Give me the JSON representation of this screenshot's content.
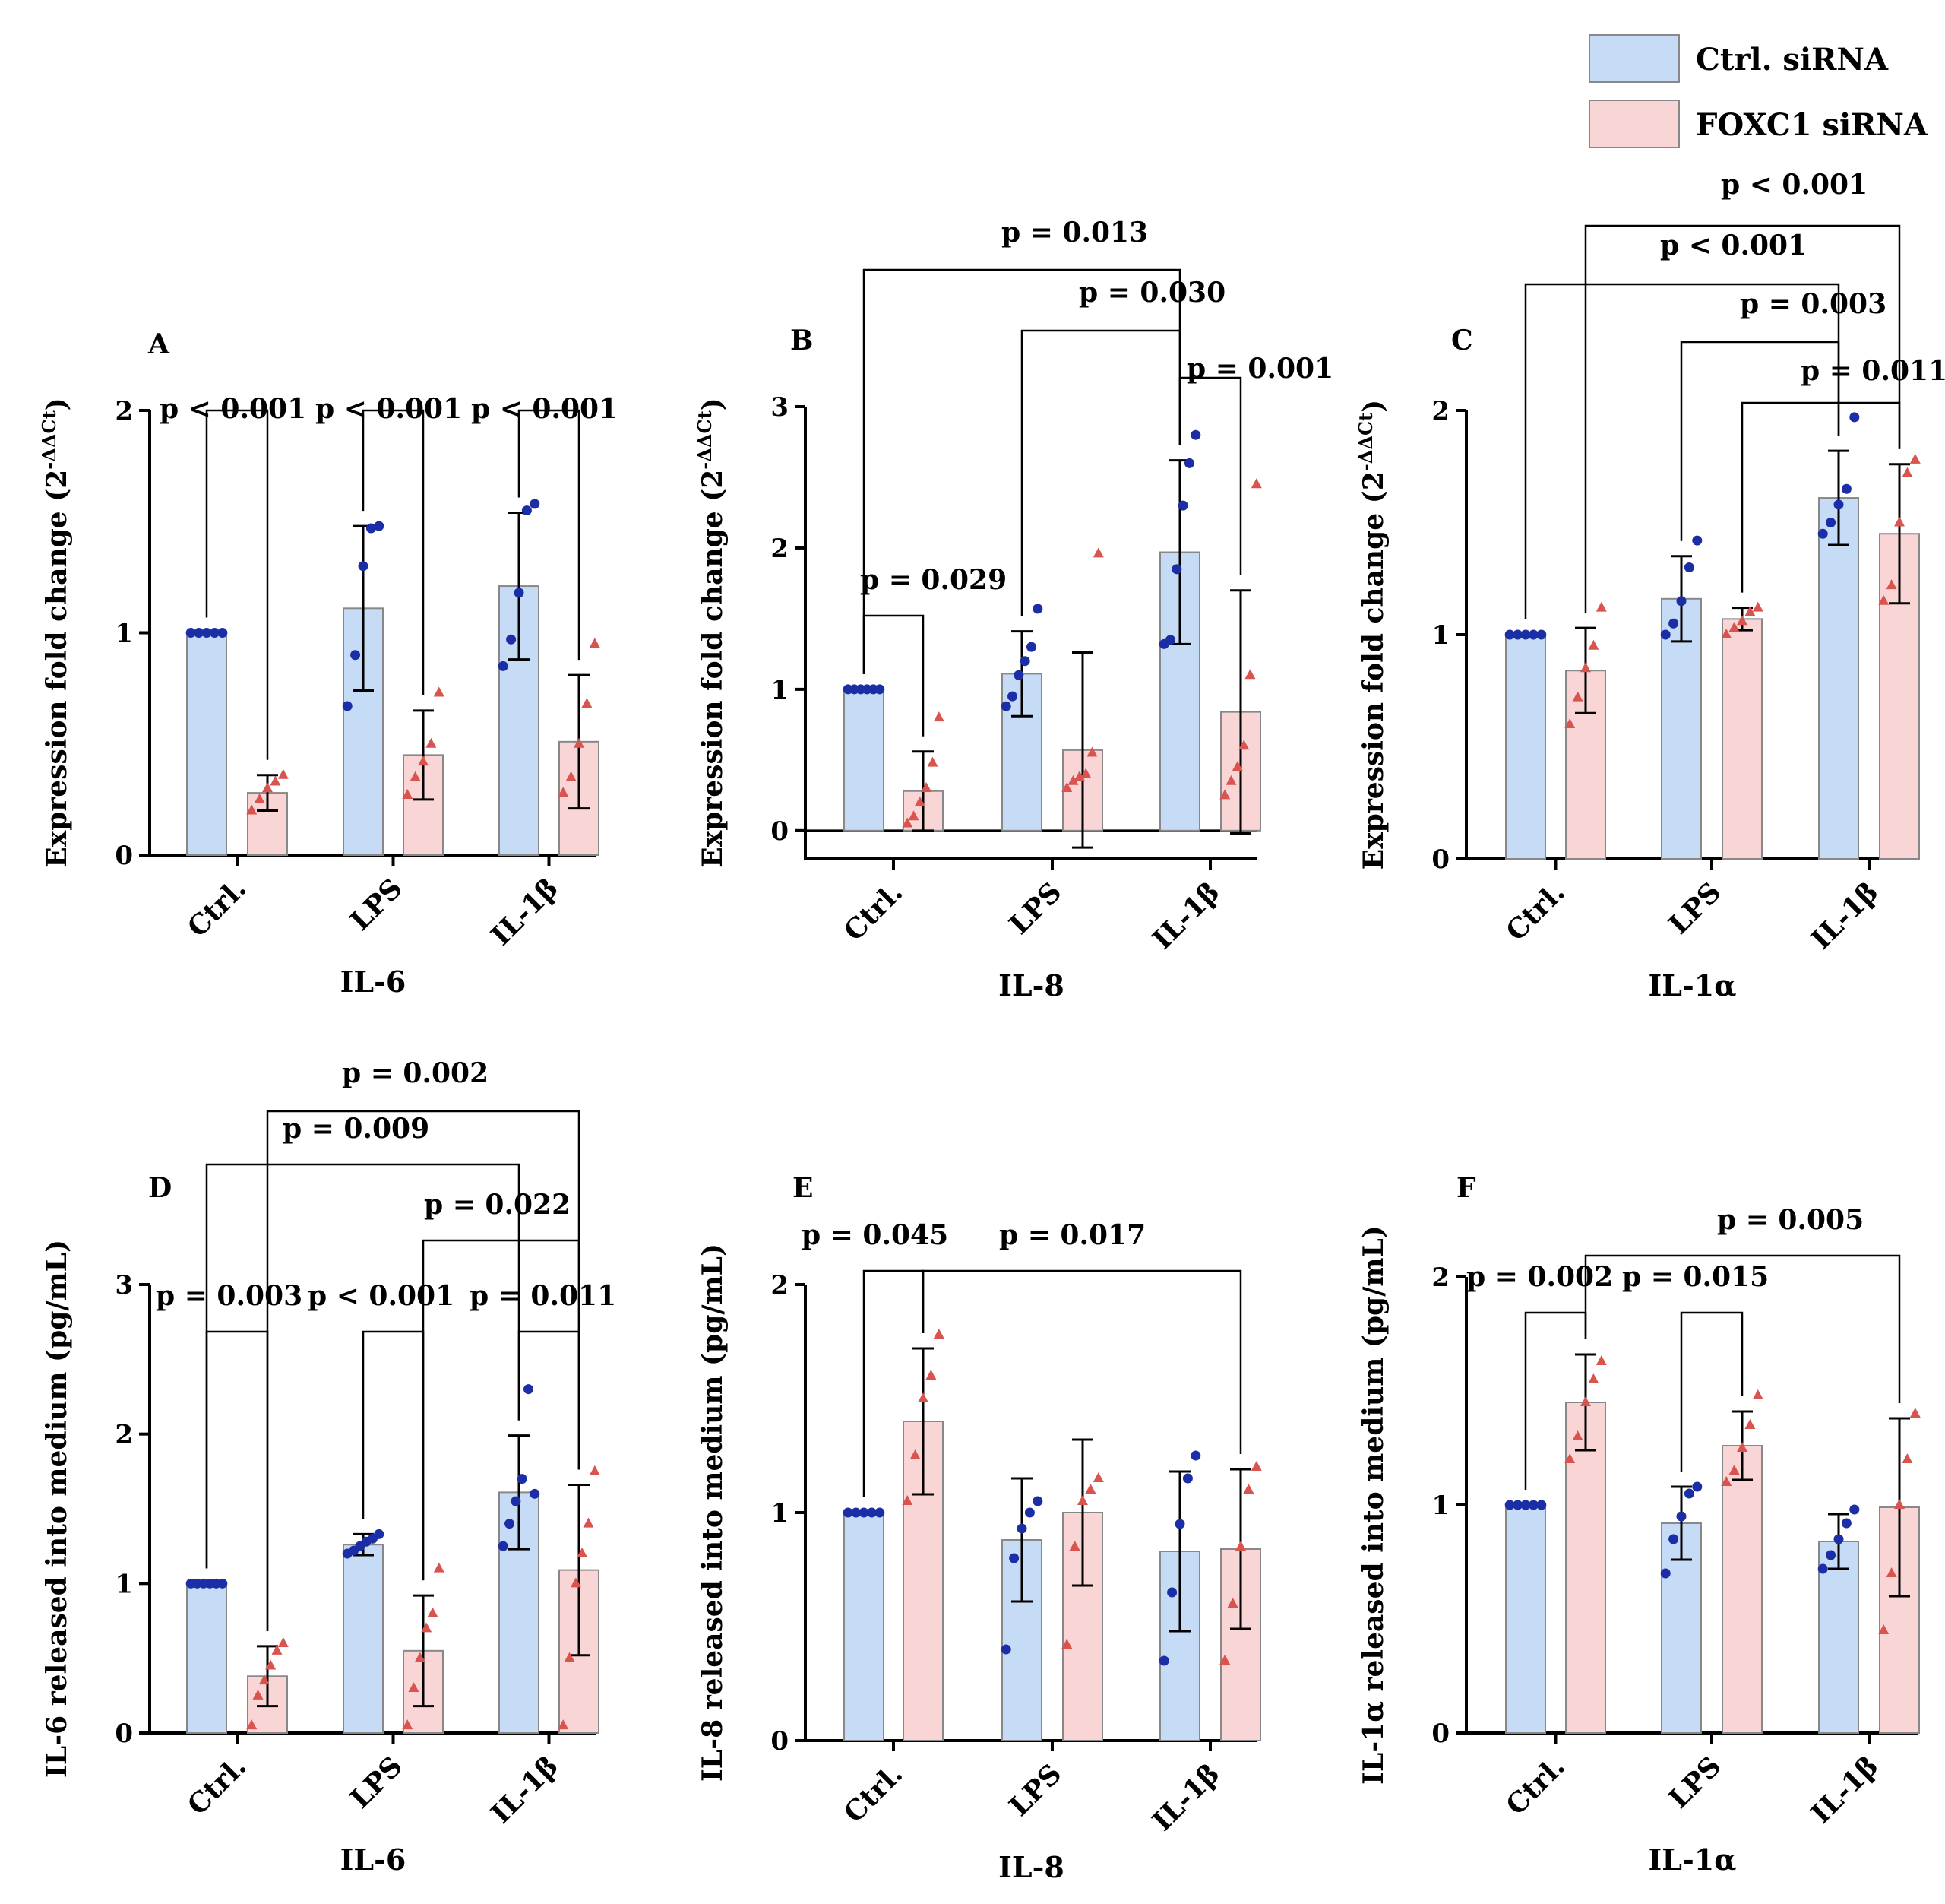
{
  "colors": {
    "ctrl_fill": "#c6dbf5",
    "ctrl_point": "#1b2ea6",
    "foxc1_fill": "#f9d5d6",
    "foxc1_point": "#d9534f",
    "edge": "#888888"
  },
  "legend": {
    "placement": "top-right",
    "entries": [
      {
        "label": "Ctrl. siRNA"
      },
      {
        "label": "FOXC1 siRNA"
      }
    ]
  },
  "chart_data": [
    {
      "type": "bar",
      "panel": "A",
      "xlabel": "IL-6",
      "ylabel": "Expression fold change (2-ΔΔCt)",
      "ylabel_main": "Expression fold change (2",
      "ylabel_sup": "-ΔΔCt",
      "ylabel_end": ")",
      "categories": [
        "Ctrl.",
        "LPS",
        "IL-1β"
      ],
      "ylim": [
        0,
        2
      ],
      "yticks": [
        "0",
        "1",
        "2"
      ],
      "series": [
        {
          "name": "Ctrl. siRNA",
          "values": [
            1.0,
            1.11,
            1.21
          ],
          "sd": [
            0,
            0.37,
            0.33
          ],
          "points": [
            [
              1,
              1,
              1,
              1,
              1
            ],
            [
              0.67,
              0.9,
              1.3,
              1.47,
              1.48
            ],
            [
              0.85,
              0.97,
              1.18,
              1.55,
              1.58
            ]
          ]
        },
        {
          "name": "FOXC1 siRNA",
          "values": [
            0.28,
            0.45,
            0.51
          ],
          "sd": [
            0.08,
            0.2,
            0.3
          ],
          "points": [
            [
              0.2,
              0.25,
              0.3,
              0.33,
              0.36
            ],
            [
              0.27,
              0.35,
              0.42,
              0.5,
              0.73
            ],
            [
              0.28,
              0.35,
              0.5,
              0.68,
              0.95
            ]
          ]
        }
      ],
      "comparisons": [
        {
          "label": "p < 0.001",
          "from": [
            0,
            0
          ],
          "to": [
            0,
            1
          ]
        },
        {
          "label": "p < 0.001",
          "from": [
            1,
            0
          ],
          "to": [
            1,
            1
          ]
        },
        {
          "label": "p < 0.001",
          "from": [
            2,
            0
          ],
          "to": [
            2,
            1
          ]
        }
      ]
    },
    {
      "type": "bar",
      "panel": "B",
      "xlabel": "IL-8",
      "ylabel": "Expression fold change (2-ΔΔCt)",
      "ylabel_main": "Expression fold change (2",
      "ylabel_sup": "-ΔΔCt",
      "ylabel_end": ")",
      "categories": [
        "Ctrl.",
        "LPS",
        "IL-1β"
      ],
      "ylim": [
        -0.2,
        3
      ],
      "yticks": [
        "0",
        "1",
        "2",
        "3"
      ],
      "series": [
        {
          "name": "Ctrl. siRNA",
          "values": [
            1.0,
            1.11,
            1.97
          ],
          "sd": [
            0,
            0.3,
            0.65
          ],
          "points": [
            [
              1,
              1,
              1,
              1,
              1,
              1
            ],
            [
              0.88,
              0.95,
              1.1,
              1.2,
              1.3,
              1.57
            ],
            [
              1.32,
              1.35,
              1.85,
              2.3,
              2.6,
              2.8
            ]
          ]
        },
        {
          "name": "FOXC1 siRNA",
          "values": [
            0.28,
            0.57,
            0.84
          ],
          "sd": [
            0.28,
            0.69,
            0.86
          ],
          "points": [
            [
              0.05,
              0.1,
              0.2,
              0.3,
              0.48,
              0.8
            ],
            [
              0.3,
              0.35,
              0.38,
              0.4,
              0.55,
              1.96
            ],
            [
              0.25,
              0.35,
              0.45,
              0.6,
              1.1,
              2.45
            ]
          ]
        }
      ],
      "comparisons": [
        {
          "label": "p = 0.029",
          "from": [
            0,
            0
          ],
          "to": [
            0,
            1
          ]
        },
        {
          "label": "p = 0.001",
          "from": [
            2,
            0
          ],
          "to": [
            2,
            1
          ]
        },
        {
          "label": "p = 0.030",
          "from": [
            1,
            0
          ],
          "to": [
            2,
            0
          ]
        },
        {
          "label": "p = 0.013",
          "from": [
            0,
            0
          ],
          "to": [
            2,
            0
          ]
        }
      ]
    },
    {
      "type": "bar",
      "panel": "C",
      "xlabel": "IL-1α",
      "ylabel": "Expression fold change (2-ΔΔCt)",
      "ylabel_main": "Expression fold change (2",
      "ylabel_sup": "-ΔΔCt",
      "ylabel_end": ")",
      "categories": [
        "Ctrl.",
        "LPS",
        "IL-1β"
      ],
      "ylim": [
        0,
        2
      ],
      "yticks": [
        "0",
        "1",
        "2"
      ],
      "series": [
        {
          "name": "Ctrl. siRNA",
          "values": [
            1.0,
            1.16,
            1.61
          ],
          "sd": [
            0,
            0.19,
            0.21
          ],
          "points": [
            [
              1,
              1,
              1,
              1,
              1
            ],
            [
              1.0,
              1.05,
              1.15,
              1.3,
              1.42
            ],
            [
              1.45,
              1.5,
              1.58,
              1.65,
              1.97
            ]
          ]
        },
        {
          "name": "FOXC1 siRNA",
          "values": [
            0.84,
            1.07,
            1.45
          ],
          "sd": [
            0.19,
            0.05,
            0.31
          ],
          "points": [
            [
              0.6,
              0.72,
              0.85,
              0.95,
              1.12
            ],
            [
              1.0,
              1.03,
              1.06,
              1.1,
              1.12
            ],
            [
              1.15,
              1.22,
              1.5,
              1.72,
              1.78
            ]
          ]
        }
      ],
      "comparisons": [
        {
          "label": "p = 0.011",
          "from": [
            1,
            1
          ],
          "to": [
            2,
            1
          ]
        },
        {
          "label": "p = 0.003",
          "from": [
            1,
            0
          ],
          "to": [
            2,
            0
          ]
        },
        {
          "label": "p < 0.001",
          "from": [
            0,
            0
          ],
          "to": [
            2,
            0
          ]
        },
        {
          "label": "p < 0.001",
          "from": [
            0,
            1
          ],
          "to": [
            2,
            1
          ]
        }
      ]
    },
    {
      "type": "bar",
      "panel": "D",
      "xlabel": "IL-6",
      "ylabel": "IL-6 released into medium (pg/mL)",
      "categories": [
        "Ctrl.",
        "LPS",
        "IL-1β"
      ],
      "ylim": [
        0,
        3
      ],
      "yticks": [
        "0",
        "1",
        "2",
        "3"
      ],
      "series": [
        {
          "name": "Ctrl. siRNA",
          "values": [
            1.0,
            1.26,
            1.61
          ],
          "sd": [
            0,
            0.07,
            0.38
          ],
          "points": [
            [
              1,
              1,
              1,
              1,
              1,
              1
            ],
            [
              1.2,
              1.22,
              1.25,
              1.28,
              1.3,
              1.33
            ],
            [
              1.25,
              1.4,
              1.55,
              1.7,
              2.3,
              1.6
            ]
          ]
        },
        {
          "name": "FOXC1 siRNA",
          "values": [
            0.38,
            0.55,
            1.09
          ],
          "sd": [
            0.2,
            0.37,
            0.57
          ],
          "points": [
            [
              0.05,
              0.25,
              0.35,
              0.45,
              0.55,
              0.6
            ],
            [
              0.05,
              0.3,
              0.5,
              0.7,
              0.8,
              1.1
            ],
            [
              0.05,
              0.5,
              1.0,
              1.2,
              1.4,
              1.75
            ]
          ]
        }
      ],
      "comparisons": [
        {
          "label": "p = 0.003",
          "from": [
            0,
            0
          ],
          "to": [
            0,
            1
          ]
        },
        {
          "label": "p < 0.001",
          "from": [
            1,
            0
          ],
          "to": [
            1,
            1
          ]
        },
        {
          "label": "p = 0.011",
          "from": [
            2,
            0
          ],
          "to": [
            2,
            1
          ]
        },
        {
          "label": "p = 0.022",
          "from": [
            1,
            1
          ],
          "to": [
            2,
            1
          ]
        },
        {
          "label": "p = 0.009",
          "from": [
            0,
            0
          ],
          "to": [
            2,
            0
          ]
        },
        {
          "label": "p = 0.002",
          "from": [
            0,
            1
          ],
          "to": [
            2,
            1
          ]
        }
      ]
    },
    {
      "type": "bar",
      "panel": "E",
      "xlabel": "IL-8",
      "ylabel": "IL-8 released into medium (pg/mL)",
      "categories": [
        "Ctrl.",
        "LPS",
        "IL-1β"
      ],
      "ylim": [
        0,
        2
      ],
      "yticks": [
        "0",
        "1",
        "2"
      ],
      "series": [
        {
          "name": "Ctrl. siRNA",
          "values": [
            1.0,
            0.88,
            0.83
          ],
          "sd": [
            0,
            0.27,
            0.35
          ],
          "points": [
            [
              1,
              1,
              1,
              1,
              1
            ],
            [
              0.4,
              0.8,
              0.93,
              1.0,
              1.05
            ],
            [
              0.35,
              0.65,
              0.95,
              1.15,
              1.25
            ]
          ]
        },
        {
          "name": "FOXC1 siRNA",
          "values": [
            1.4,
            1.0,
            0.84
          ],
          "sd": [
            0.32,
            0.32,
            0.35
          ],
          "points": [
            [
              1.05,
              1.25,
              1.5,
              1.6,
              1.78
            ],
            [
              0.42,
              0.85,
              1.05,
              1.1,
              1.15
            ],
            [
              0.35,
              0.6,
              0.85,
              1.1,
              1.2
            ]
          ]
        }
      ],
      "comparisons": [
        {
          "label": "p = 0.045",
          "from": [
            0,
            0
          ],
          "to": [
            0,
            1
          ]
        },
        {
          "label": "p = 0.017",
          "from": [
            0,
            1
          ],
          "to": [
            2,
            1
          ]
        }
      ]
    },
    {
      "type": "bar",
      "panel": "F",
      "xlabel": "IL-1α",
      "ylabel": "IL-1α released into medium (pg/mL)",
      "categories": [
        "Ctrl.",
        "LPS",
        "IL-1β"
      ],
      "ylim": [
        0,
        2
      ],
      "yticks": [
        "0",
        "1",
        "2"
      ],
      "series": [
        {
          "name": "Ctrl. siRNA",
          "values": [
            1.0,
            0.92,
            0.84
          ],
          "sd": [
            0,
            0.16,
            0.12
          ],
          "points": [
            [
              1,
              1,
              1,
              1,
              1
            ],
            [
              0.7,
              0.85,
              0.95,
              1.05,
              1.08
            ],
            [
              0.72,
              0.78,
              0.85,
              0.92,
              0.98
            ]
          ]
        },
        {
          "name": "FOXC1 siRNA",
          "values": [
            1.45,
            1.26,
            0.99
          ],
          "sd": [
            0.21,
            0.15,
            0.39
          ],
          "points": [
            [
              1.2,
              1.3,
              1.45,
              1.55,
              1.63
            ],
            [
              1.1,
              1.15,
              1.25,
              1.35,
              1.48
            ],
            [
              0.45,
              0.7,
              1.0,
              1.2,
              1.4
            ]
          ]
        }
      ],
      "comparisons": [
        {
          "label": "p = 0.002",
          "from": [
            0,
            0
          ],
          "to": [
            0,
            1
          ]
        },
        {
          "label": "p = 0.015",
          "from": [
            1,
            0
          ],
          "to": [
            1,
            1
          ]
        },
        {
          "label": "p = 0.005",
          "from": [
            0,
            1
          ],
          "to": [
            2,
            1
          ]
        }
      ]
    }
  ]
}
